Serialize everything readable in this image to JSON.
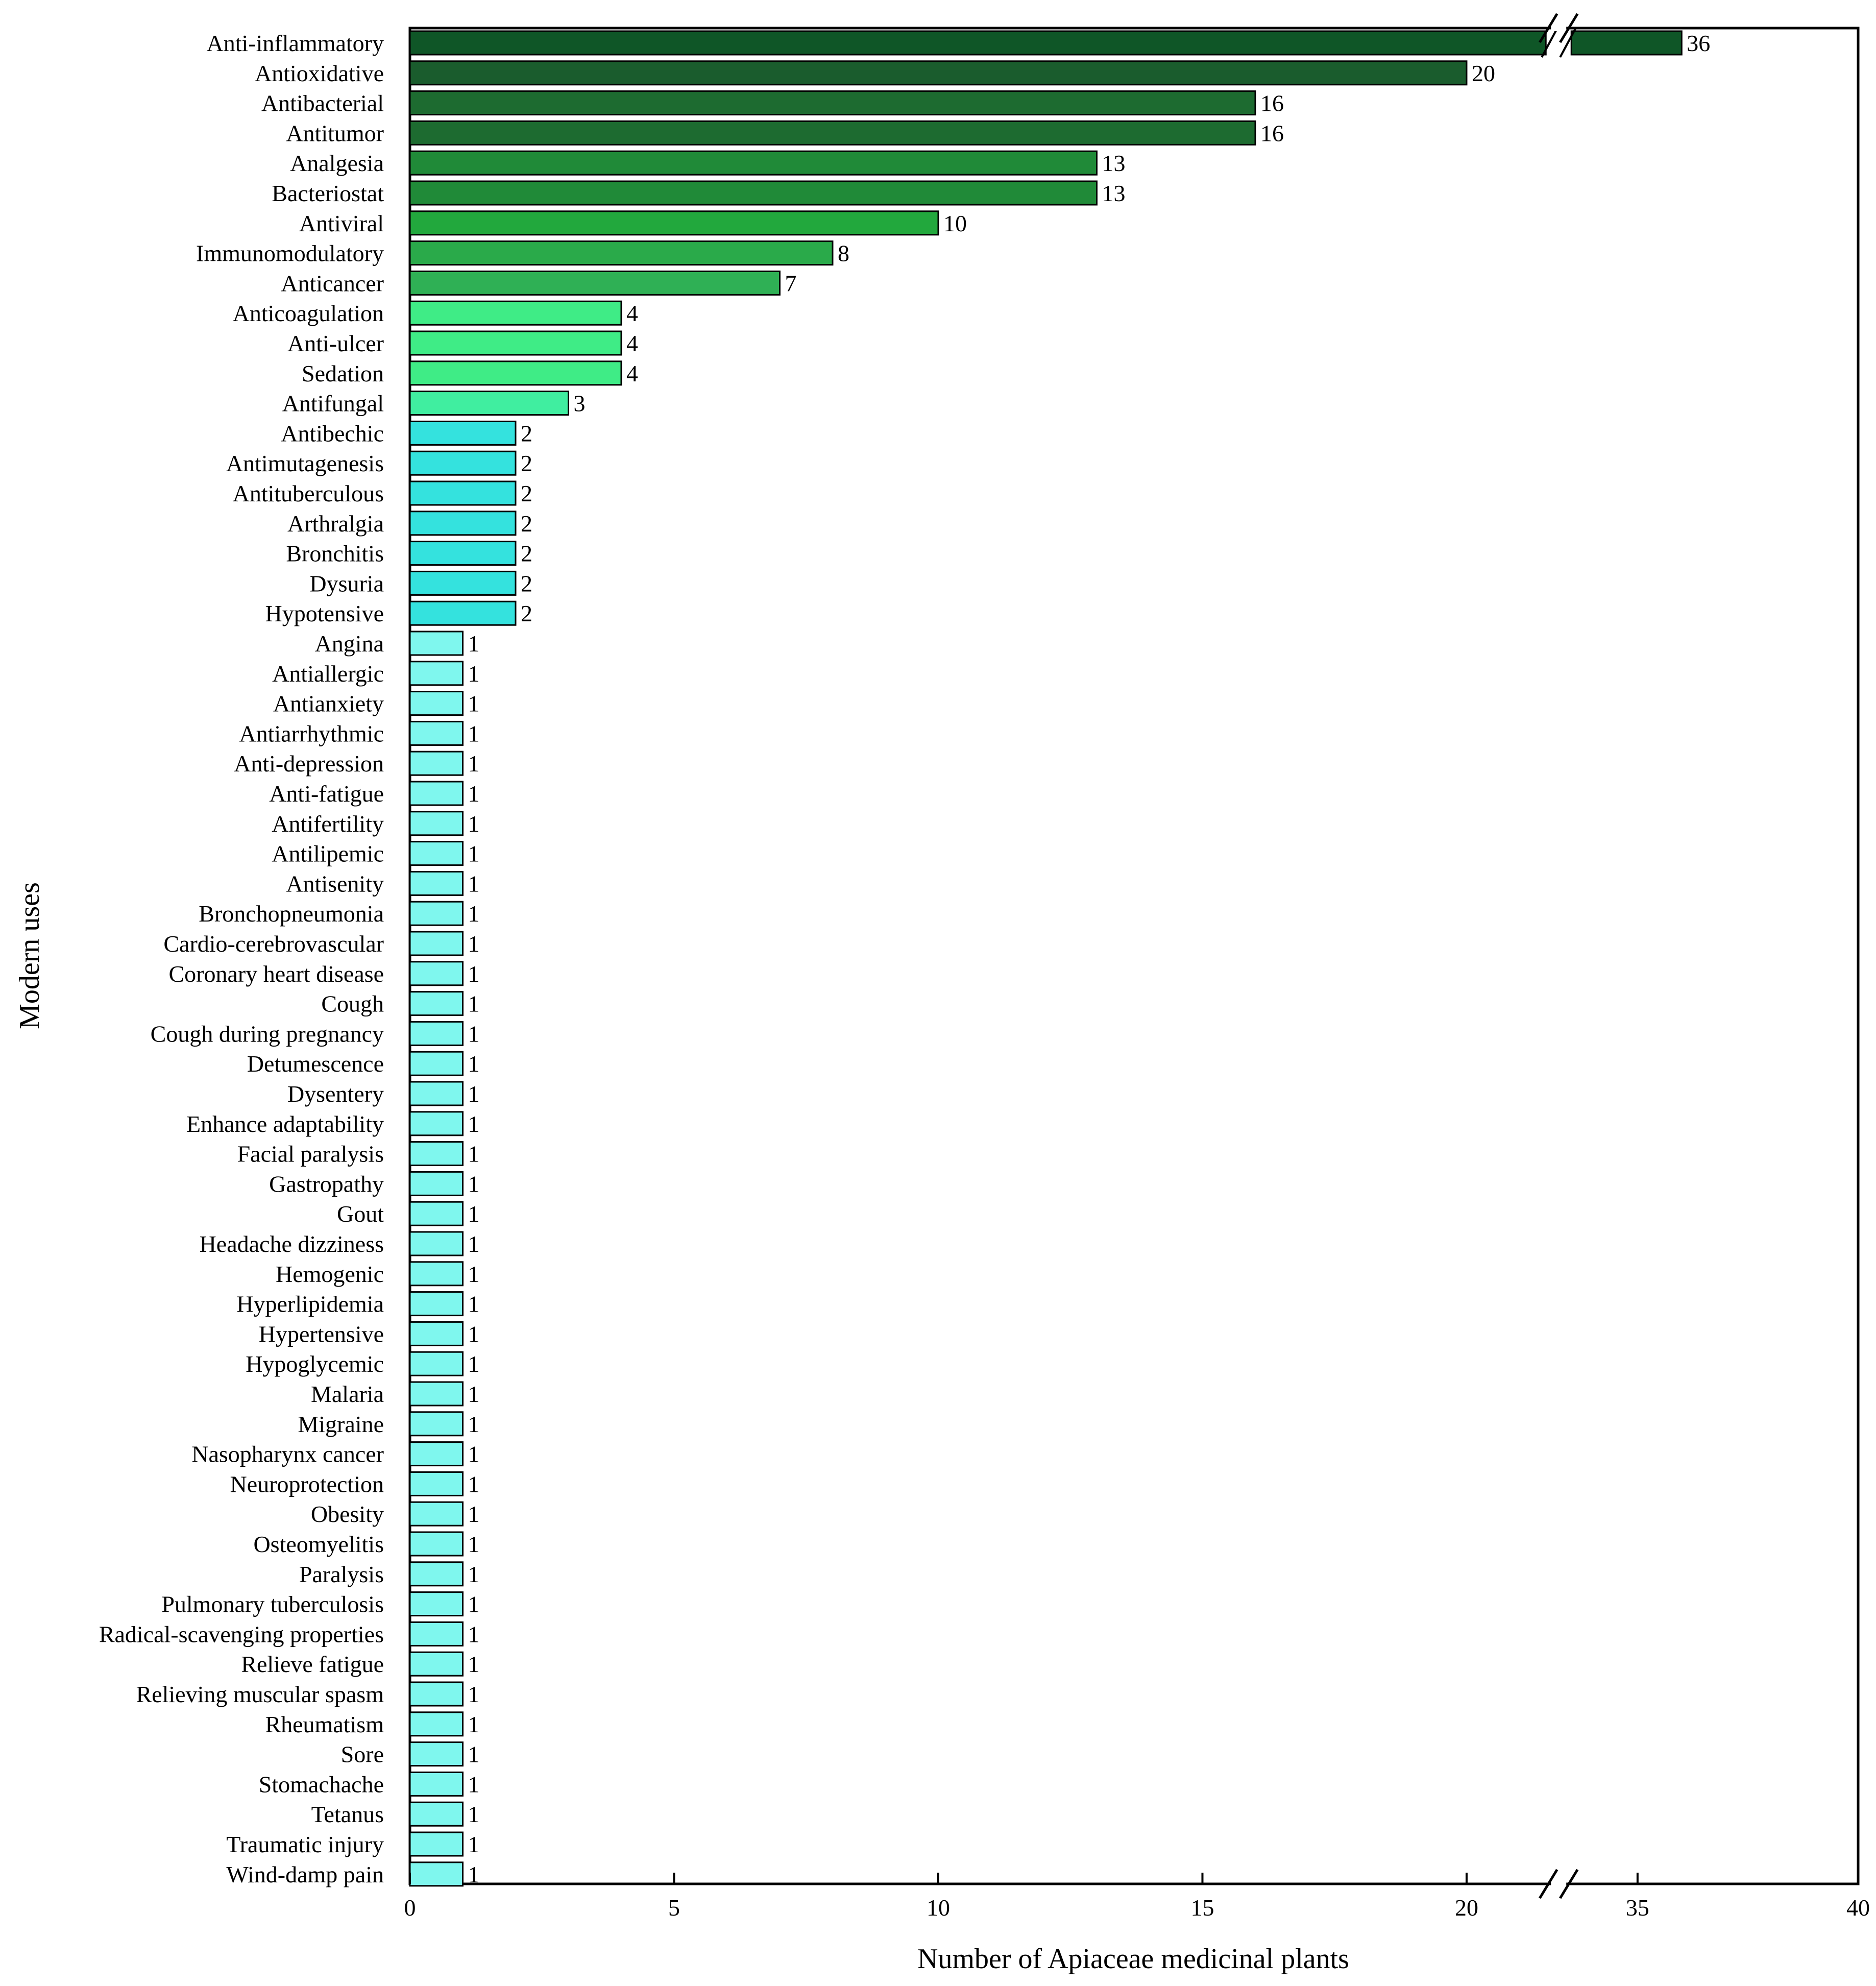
{
  "chart_data": {
    "type": "bar",
    "orientation": "horizontal",
    "title": "",
    "xlabel": "Number of Apiaceae medicinal plants",
    "ylabel": "Modern uses",
    "xlim": [
      0,
      40
    ],
    "x_axis_break": [
      21.5,
      33.5
    ],
    "xticks": [
      "0",
      "5",
      "10",
      "15",
      "20",
      "35",
      "40"
    ],
    "grid": false,
    "legend": "none",
    "categories": [
      "Anti-inflammatory",
      "Antioxidative",
      "Antibacterial",
      "Antitumor",
      "Analgesia",
      "Bacteriostat",
      "Antiviral",
      "Immunomodulatory",
      "Anticancer",
      "Anticoagulation",
      "Anti-ulcer",
      "Sedation",
      "Antifungal",
      "Antibechic",
      "Antimutagenesis",
      "Antituberculous",
      "Arthralgia",
      "Bronchitis",
      "Dysuria",
      "Hypotensive",
      "Angina",
      "Antiallergic",
      "Antianxiety",
      "Antiarrhythmic",
      "Anti-depression",
      "Anti-fatigue",
      "Antifertility",
      "Antilipemic",
      "Antisenity",
      "Bronchopneumonia",
      "Cardio-cerebrovascular",
      "Coronary heart disease",
      "Cough",
      "Cough during pregnancy",
      "Detumescence",
      "Dysentery",
      "Enhance adaptability",
      "Facial paralysis",
      "Gastropathy",
      "Gout",
      "Headache  dizziness",
      "Hemogenic",
      "Hyperlipidemia",
      "Hypertensive",
      "Hypoglycemic",
      "Malaria",
      "Migraine",
      "Nasopharynx cancer",
      "Neuroprotection",
      "Obesity",
      "Osteomyelitis",
      "Paralysis",
      "Pulmonary tuberculosis",
      "Radical-scavenging properties",
      "Relieve fatigue",
      "Relieving muscular spasm",
      "Rheumatism",
      "Sore",
      "Stomachache",
      "Tetanus",
      "Traumatic injury",
      "Wind-damp pain"
    ],
    "values": [
      36,
      20,
      16,
      16,
      13,
      13,
      10,
      8,
      7,
      4,
      4,
      4,
      3,
      2,
      2,
      2,
      2,
      2,
      2,
      2,
      1,
      1,
      1,
      1,
      1,
      1,
      1,
      1,
      1,
      1,
      1,
      1,
      1,
      1,
      1,
      1,
      1,
      1,
      1,
      1,
      1,
      1,
      1,
      1,
      1,
      1,
      1,
      1,
      1,
      1,
      1,
      1,
      1,
      1,
      1,
      1,
      1,
      1,
      1,
      1,
      1,
      1
    ],
    "colors": [
      "#0f5627",
      "#1a5c2d",
      "#1d6b30",
      "#1d6b30",
      "#208a38",
      "#208a38",
      "#22a83d",
      "#2aaa4a",
      "#2fb055",
      "#3fec86",
      "#3fec86",
      "#3fec86",
      "#40eea0",
      "#34e2de",
      "#34e2de",
      "#34e2de",
      "#34e2de",
      "#34e2de",
      "#34e2de",
      "#34e2de",
      "#7ff7ee",
      "#7ff7ee",
      "#7ff7ee",
      "#7ff7ee",
      "#7ff7ee",
      "#7ff7ee",
      "#7ff7ee",
      "#7ff7ee",
      "#7ff7ee",
      "#7ff7ee",
      "#7ff7ee",
      "#7ff7ee",
      "#7ff7ee",
      "#7ff7ee",
      "#7ff7ee",
      "#7ff7ee",
      "#7ff7ee",
      "#7ff7ee",
      "#7ff7ee",
      "#7ff7ee",
      "#7ff7ee",
      "#7ff7ee",
      "#7ff7ee",
      "#7ff7ee",
      "#7ff7ee",
      "#7ff7ee",
      "#7ff7ee",
      "#7ff7ee",
      "#7ff7ee",
      "#7ff7ee",
      "#7ff7ee",
      "#7ff7ee",
      "#7ff7ee",
      "#7ff7ee",
      "#7ff7ee",
      "#7ff7ee",
      "#7ff7ee",
      "#7ff7ee",
      "#7ff7ee",
      "#7ff7ee",
      "#7ff7ee",
      "#7ff7ee"
    ]
  }
}
